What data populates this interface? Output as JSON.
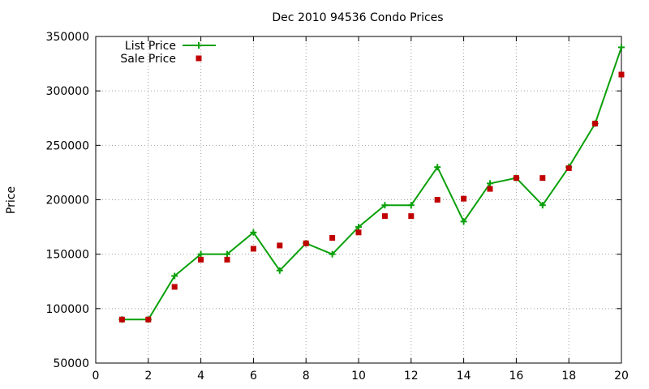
{
  "chart_data": {
    "type": "line",
    "title": "Dec 2010 94536 Condo Prices",
    "xlabel": "",
    "ylabel": "Price",
    "xlim": [
      0,
      20
    ],
    "ylim": [
      50000,
      350000
    ],
    "xticks": [
      "0",
      "2",
      "4",
      "6",
      "8",
      "10",
      "12",
      "14",
      "16",
      "18",
      "20"
    ],
    "yticks": [
      "50000",
      "100000",
      "150000",
      "200000",
      "250000",
      "300000",
      "350000"
    ],
    "grid": true,
    "legend": "top-left",
    "series": [
      {
        "name": "List Price",
        "kind": "line-with-plus",
        "color": "#0aa00a",
        "points": [
          {
            "x": 1,
            "y": 90000
          },
          {
            "x": 2,
            "y": 90000
          },
          {
            "x": 3,
            "y": 130000
          },
          {
            "x": 4,
            "y": 150000
          },
          {
            "x": 5,
            "y": 150000
          },
          {
            "x": 6,
            "y": 170000
          },
          {
            "x": 7,
            "y": 135000
          },
          {
            "x": 8,
            "y": 160000
          },
          {
            "x": 9,
            "y": 150000
          },
          {
            "x": 10,
            "y": 175000
          },
          {
            "x": 11,
            "y": 195000
          },
          {
            "x": 12,
            "y": 195000
          },
          {
            "x": 13,
            "y": 230000
          },
          {
            "x": 14,
            "y": 180000
          },
          {
            "x": 15,
            "y": 215000
          },
          {
            "x": 16,
            "y": 220000
          },
          {
            "x": 17,
            "y": 195000
          },
          {
            "x": 18,
            "y": 230000
          },
          {
            "x": 19,
            "y": 270000
          },
          {
            "x": 20,
            "y": 340000
          }
        ]
      },
      {
        "name": "Sale Price",
        "kind": "square",
        "color": "#c00000",
        "points": [
          {
            "x": 1,
            "y": 90000
          },
          {
            "x": 2,
            "y": 90000
          },
          {
            "x": 3,
            "y": 120000
          },
          {
            "x": 4,
            "y": 145000
          },
          {
            "x": 5,
            "y": 145000
          },
          {
            "x": 6,
            "y": 155000
          },
          {
            "x": 7,
            "y": 158000
          },
          {
            "x": 8,
            "y": 160000
          },
          {
            "x": 9,
            "y": 165000
          },
          {
            "x": 10,
            "y": 170000
          },
          {
            "x": 11,
            "y": 185000
          },
          {
            "x": 12,
            "y": 185000
          },
          {
            "x": 13,
            "y": 200000
          },
          {
            "x": 14,
            "y": 201000
          },
          {
            "x": 15,
            "y": 210000
          },
          {
            "x": 16,
            "y": 220000
          },
          {
            "x": 17,
            "y": 220000
          },
          {
            "x": 18,
            "y": 229000
          },
          {
            "x": 19,
            "y": 270000
          },
          {
            "x": 20,
            "y": 315000
          }
        ]
      }
    ]
  }
}
